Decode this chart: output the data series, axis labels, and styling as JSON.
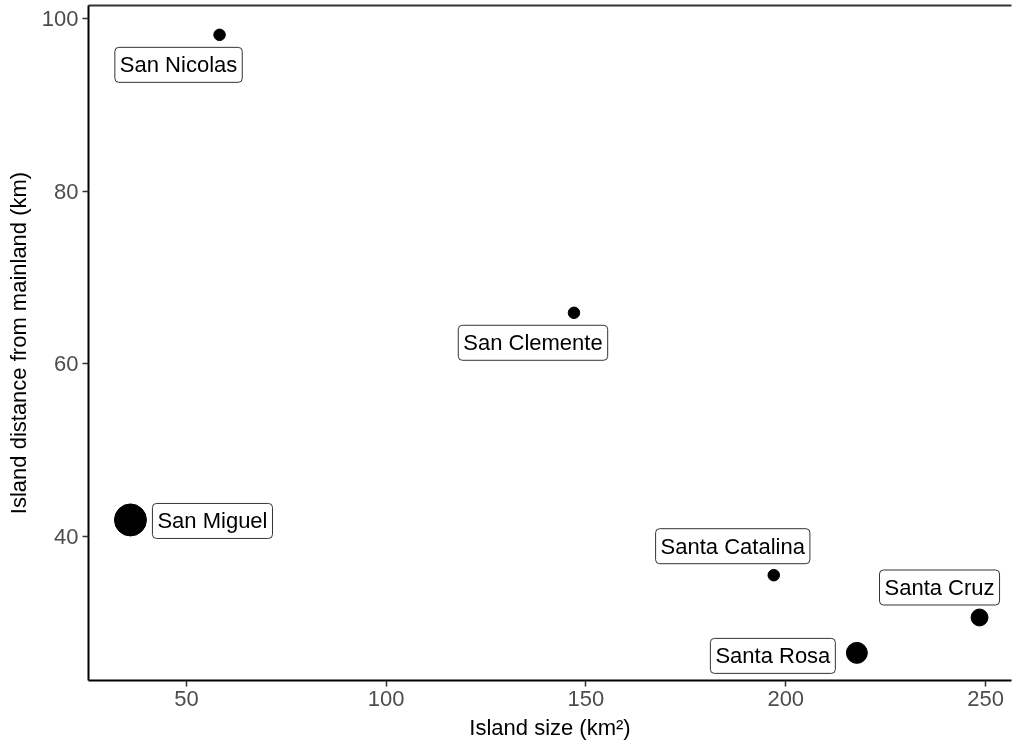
{
  "chart_data": {
    "type": "bubble",
    "xlabel": "Island size (km²)",
    "ylabel": "Island distance from mainland (km)",
    "x": [
      58.3,
      147,
      36,
      197,
      248.5,
      217.8
    ],
    "values": [
      98.1,
      65.9,
      41.9,
      35.5,
      30.6,
      26.5
    ],
    "sizes": [
      0.13,
      0.13,
      1,
      0.13,
      0.28,
      0.43
    ],
    "color": "#000000",
    "marker": "circle",
    "xlim": [
      25.5,
      256.5
    ],
    "ylim": [
      23.3,
      101.5
    ],
    "xticks": [
      50,
      100,
      150,
      200,
      250
    ],
    "yticks": [
      40,
      60,
      80,
      100
    ],
    "grid": false,
    "annotations": [
      {
        "text": "San Nicolas",
        "x": 58.3,
        "y": 98.1
      },
      {
        "text": "San Clemente",
        "x": 147,
        "y": 65.9
      },
      {
        "text": "San Miguel",
        "x": 36,
        "y": 41.9
      },
      {
        "text": "Santa Catalina",
        "x": 197,
        "y": 35.5
      },
      {
        "text": "Santa Cruz",
        "x": 248.5,
        "y": 30.6
      },
      {
        "text": "Santa Rosa",
        "x": 217.8,
        "y": 26.5
      }
    ]
  }
}
